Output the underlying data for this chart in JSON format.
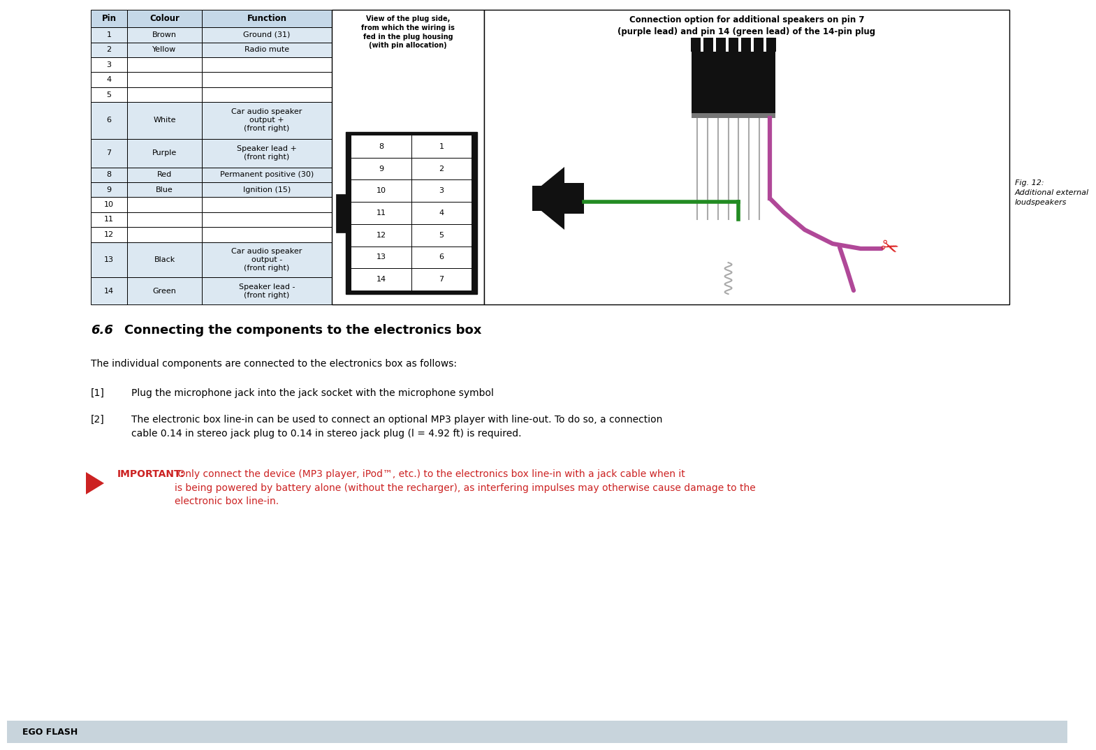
{
  "bg_color": "#ffffff",
  "table_header_bg": "#c5d8e8",
  "table_row_bg_colored": "#dce8f2",
  "table_border": "#000000",
  "table_data": [
    [
      "Pin",
      "Colour",
      "Function"
    ],
    [
      "1",
      "Brown",
      "Ground (31)"
    ],
    [
      "2",
      "Yellow",
      "Radio mute"
    ],
    [
      "3",
      "",
      ""
    ],
    [
      "4",
      "",
      ""
    ],
    [
      "5",
      "",
      ""
    ],
    [
      "6",
      "White",
      "Car audio speaker\noutput +\n(front right)"
    ],
    [
      "7",
      "Purple",
      "Speaker lead +\n(front right)"
    ],
    [
      "8",
      "Red",
      "Permanent positive (30)"
    ],
    [
      "9",
      "Blue",
      "Ignition (15)"
    ],
    [
      "10",
      "",
      ""
    ],
    [
      "11",
      "",
      ""
    ],
    [
      "12",
      "",
      ""
    ],
    [
      "13",
      "Black",
      "Car audio speaker\noutput -\n(front right)"
    ],
    [
      "14",
      "Green",
      "Speaker lead -\n(front right)"
    ]
  ],
  "section_title_num": "6.6",
  "section_title_text": "Connecting the components to the electronics box",
  "body_text1": "The individual components are connected to the electronics box as follows:",
  "list_items": [
    [
      "[1]",
      "Plug the microphone jack into the jack socket with the microphone symbol"
    ],
    [
      "[2]",
      "The electronic box line-in can be used to connect an optional MP3 player with line-out. To do so, a connection\ncable 0.14 in stereo jack plug to 0.14 in stereo jack plug (l = 4.92 ft) is required."
    ]
  ],
  "important_label": "IMPORTANT:",
  "important_text": " Only connect the device (MP3 player, iPod™, etc.) to the electronics box line-in with a jack cable when it\nis being powered by battery alone (without the recharger), as interfering impulses may otherwise cause damage to the\nelectronic box line-in.",
  "important_color": "#cc2222",
  "fig_caption": "Fig. 12:\nAdditional external\nloudspeakers",
  "view_label": "View of the plug side,\nfrom which the wiring is\nfed in the plug housing\n(with pin allocation)",
  "connection_label": "Connection option for additional speakers on pin 7\n(purple lead) and pin 14 (green lead) of the 14-pin plug",
  "footer_text": "EGO FLASH",
  "footer_bg": "#c8d4dc",
  "plug_nums_left": [
    "8",
    "9",
    "10",
    "11",
    "12",
    "13",
    "14"
  ],
  "plug_nums_right": [
    "1",
    "2",
    "3",
    "4",
    "5",
    "6",
    "7"
  ],
  "purple_color": "#b04898",
  "green_color": "#228B22",
  "scissors_color": "#dd2222",
  "wire_gray": "#aaaaaa"
}
